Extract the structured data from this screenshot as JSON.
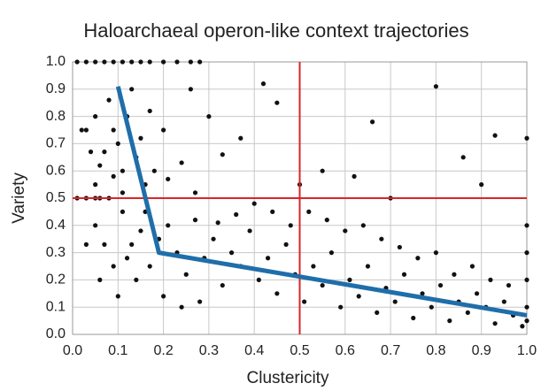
{
  "chart_data": {
    "type": "scatter",
    "title": "Haloarchaeal operon-like context trajectories",
    "x_label": "Clustericity",
    "y_label": "Variety",
    "xlim": [
      0,
      1
    ],
    "ylim": [
      0,
      1
    ],
    "xticks": [
      {
        "value": 0,
        "label": "0.0"
      },
      0.1,
      0.2,
      0.3,
      0.4,
      0.5,
      0.6,
      0.7,
      0.8,
      0.9,
      {
        "value": 1,
        "label": "1.0"
      }
    ],
    "yticks": [
      {
        "value": 0,
        "label": "0.0"
      },
      0.1,
      0.2,
      0.3,
      0.4,
      0.5,
      0.6,
      0.7,
      0.8,
      0.9,
      {
        "value": 1,
        "label": "1.0"
      }
    ],
    "grid": true,
    "series": [
      {
        "color": "#111111",
        "x": [
          0.01,
          0.03,
          0.05,
          0.07,
          0.09,
          0.11,
          0.13,
          0.15,
          0.17,
          0.2,
          0.23,
          0.26,
          0.28,
          0.03,
          0.05,
          0.07,
          0.09,
          0.11,
          0.04,
          0.06,
          0.08,
          0.1,
          0.12,
          0.14,
          0.16,
          0.13,
          0.02,
          0.06,
          0.09,
          0.15,
          0.18,
          0.21,
          0.24,
          0.27,
          0.17,
          0.2,
          0.05,
          0.11,
          0.01,
          0.03,
          0.05,
          0.08,
          0.03,
          0.05,
          0.07,
          0.09,
          0.11,
          0.13,
          0.15,
          0.17,
          0.06,
          0.1,
          0.12,
          0.14,
          0.16,
          0.19,
          0.21,
          0.23,
          0.25,
          0.27,
          0.29,
          0.31,
          0.33,
          0.35,
          0.37,
          0.39,
          0.41,
          0.43,
          0.45,
          0.47,
          0.49,
          0.51,
          0.53,
          0.55,
          0.57,
          0.59,
          0.61,
          0.63,
          0.65,
          0.67,
          0.69,
          0.71,
          0.73,
          0.75,
          0.77,
          0.79,
          0.81,
          0.83,
          0.85,
          0.87,
          0.89,
          0.91,
          0.93,
          0.95,
          0.97,
          0.99,
          1.0,
          1.0,
          1.0,
          1.0,
          1.0,
          0.96,
          0.92,
          0.88,
          0.84,
          0.8,
          0.76,
          0.72,
          0.68,
          0.64,
          0.6,
          0.56,
          0.52,
          0.48,
          0.44,
          0.4,
          0.36,
          0.32,
          0.28,
          0.24,
          0.2,
          0.8,
          0.93,
          1.0,
          0.86,
          0.66,
          0.45,
          0.42,
          0.37,
          0.62,
          0.55,
          0.9,
          0.7,
          0.5,
          0.33,
          0.3,
          0.26
        ],
        "values": [
          1,
          1,
          1,
          1,
          1,
          1,
          1,
          1,
          1,
          1,
          1,
          1,
          1,
          0.75,
          0.8,
          0.67,
          0.75,
          0.6,
          0.67,
          0.62,
          0.86,
          0.7,
          0.8,
          0.65,
          0.55,
          0.9,
          0.75,
          0.5,
          0.58,
          0.72,
          0.6,
          0.57,
          0.63,
          0.52,
          0.82,
          0.75,
          0.55,
          0.52,
          0.5,
          0.5,
          0.5,
          0.5,
          0.33,
          0.4,
          0.33,
          0.25,
          0.45,
          0.33,
          0.38,
          0.25,
          0.2,
          0.14,
          0.28,
          0.2,
          0.45,
          0.35,
          0.4,
          0.3,
          0.22,
          0.42,
          0.28,
          0.35,
          0.18,
          0.3,
          0.25,
          0.38,
          0.2,
          0.28,
          0.15,
          0.33,
          0.22,
          0.12,
          0.25,
          0.18,
          0.3,
          0.1,
          0.2,
          0.14,
          0.25,
          0.08,
          0.17,
          0.12,
          0.22,
          0.06,
          0.15,
          0.1,
          0.18,
          0.05,
          0.12,
          0.08,
          0.15,
          0.1,
          0.04,
          0.12,
          0.07,
          0.03,
          0.1,
          0.2,
          0.3,
          0.4,
          0.05,
          0.18,
          0.2,
          0.25,
          0.22,
          0.3,
          0.28,
          0.32,
          0.35,
          0.4,
          0.38,
          0.42,
          0.45,
          0.4,
          0.45,
          0.48,
          0.44,
          0.41,
          0.12,
          0.1,
          0.14,
          0.91,
          0.73,
          0.72,
          0.65,
          0.78,
          0.85,
          0.92,
          0.72,
          0.58,
          0.6,
          0.55,
          0.5,
          0.55,
          0.66,
          0.8,
          0.9
        ]
      }
    ],
    "trend": {
      "color": "#1f6eaa",
      "x": [
        0.1,
        0.19,
        1.0
      ],
      "values": [
        0.91,
        0.3,
        0.07
      ]
    },
    "reference_lines": {
      "color": "#d7262b",
      "x": 0.5,
      "y": 0.5
    }
  }
}
